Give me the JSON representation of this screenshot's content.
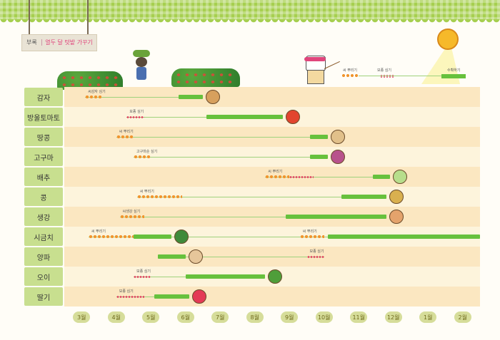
{
  "title_sign": {
    "prefix": "부록",
    "title": "열두 달 텃밭 가꾸기"
  },
  "legend": {
    "sow": "씨 뿌리기",
    "plant": "모종 심기",
    "harvest": "수확하기"
  },
  "colors": {
    "harvest": "#67c13d",
    "sow": "#f0952f",
    "plant": "#e23b5e",
    "label_bg": "#c8df8f"
  },
  "months": [
    "3월",
    "4월",
    "5월",
    "6월",
    "7월",
    "8월",
    "9월",
    "10월",
    "11월",
    "12월",
    "1월",
    "2월"
  ],
  "crops": [
    {
      "name": "감자",
      "icon": "potato-icon",
      "notes": [
        "씨감자 심기"
      ],
      "sow": [
        [
          0.6,
          1.1
        ]
      ],
      "plant": [],
      "harvest": [
        [
          3.3,
          4.0
        ]
      ]
    },
    {
      "name": "방울토마토",
      "icon": "tomato-icon",
      "notes": [
        "모종 심기"
      ],
      "sow": [],
      "plant": [
        [
          1.8,
          2.3
        ]
      ],
      "harvest": [
        [
          4.1,
          6.3
        ]
      ]
    },
    {
      "name": "땅콩",
      "icon": "peanut-icon",
      "notes": [
        "씨 뿌리기"
      ],
      "sow": [
        [
          1.5,
          2.0
        ]
      ],
      "plant": [],
      "harvest": [
        [
          7.1,
          7.6
        ]
      ]
    },
    {
      "name": "고구마",
      "icon": "sweet-potato-icon",
      "notes": [
        "고구마순 심기"
      ],
      "sow": [
        [
          2.0,
          2.5
        ]
      ],
      "plant": [],
      "harvest": [
        [
          7.1,
          7.6
        ]
      ]
    },
    {
      "name": "배추",
      "icon": "cabbage-icon",
      "notes": [
        "씨 뿌리기"
      ],
      "sow": [
        [
          5.8,
          6.5
        ]
      ],
      "plant": [
        [
          6.5,
          7.2
        ]
      ],
      "harvest": [
        [
          8.9,
          9.4
        ]
      ]
    },
    {
      "name": "콩",
      "icon": "bean-icon",
      "notes": [
        "씨 뿌리기"
      ],
      "sow": [
        [
          2.1,
          3.4
        ]
      ],
      "plant": [],
      "harvest": [
        [
          8.0,
          9.3
        ]
      ]
    },
    {
      "name": "생강",
      "icon": "ginger-icon",
      "notes": [
        "씨생강 심기"
      ],
      "sow": [
        [
          1.6,
          2.3
        ]
      ],
      "plant": [],
      "harvest": [
        [
          6.4,
          9.3
        ]
      ]
    },
    {
      "name": "시금치",
      "icon": "spinach-icon",
      "notes": [
        "씨 뿌리기",
        "씨 뿌리기"
      ],
      "sow": [
        [
          0.7,
          2.0
        ],
        [
          6.8,
          7.5
        ]
      ],
      "plant": [],
      "harvest": [
        [
          2.0,
          3.1
        ],
        [
          7.6,
          12
        ]
      ]
    },
    {
      "name": "양파",
      "icon": "onion-icon",
      "notes": [
        "모종 심기"
      ],
      "sow": [],
      "plant": [
        [
          7.0,
          7.5
        ]
      ],
      "harvest": [
        [
          2.7,
          3.5
        ]
      ]
    },
    {
      "name": "오이",
      "icon": "cucumber-icon",
      "notes": [
        "모종 심기"
      ],
      "sow": [],
      "plant": [
        [
          2.0,
          2.5
        ]
      ],
      "harvest": [
        [
          3.5,
          5.8
        ]
      ]
    },
    {
      "name": "딸기",
      "icon": "strawberry-icon",
      "notes": [
        "모종 심기"
      ],
      "sow": [],
      "plant": [
        [
          1.5,
          2.3
        ]
      ],
      "harvest": [
        [
          2.6,
          3.6
        ]
      ]
    }
  ]
}
